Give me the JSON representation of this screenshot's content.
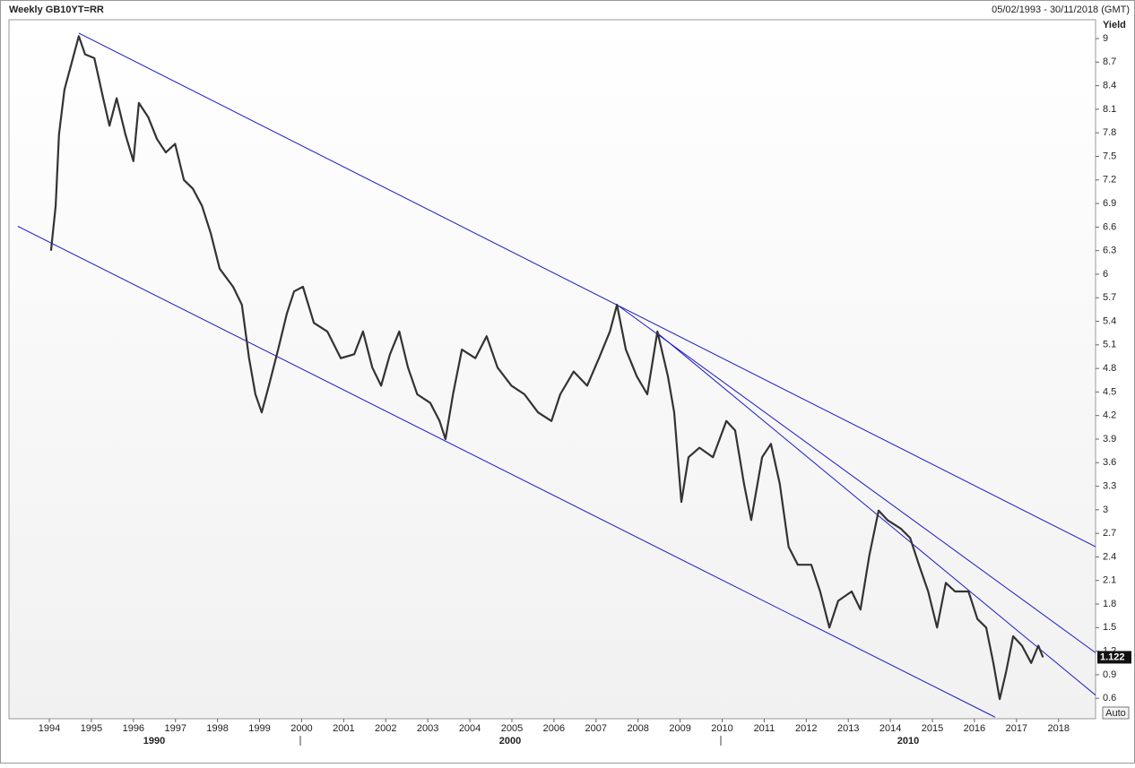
{
  "chart_data": {
    "type": "line",
    "title": "Weekly GB10YT=RR",
    "date_range": "05/02/1993 - 30/11/2018 (GMT)",
    "y_axis_label": "Yield",
    "auto_button": "Auto",
    "xlim": [
      1993.04,
      2018.88
    ],
    "xticks": [
      1994,
      1995,
      1996,
      1997,
      1998,
      1999,
      2000,
      2001,
      2002,
      2003,
      2004,
      2005,
      2006,
      2007,
      2008,
      2009,
      2010,
      2011,
      2012,
      2013,
      2014,
      2015,
      2016,
      2017,
      2018
    ],
    "major_labels": [
      "1990",
      "2000",
      "2010"
    ],
    "ylim": [
      0.34,
      9.24
    ],
    "yticks": [
      0.6,
      0.9,
      1.2,
      1.5,
      1.8,
      2.1,
      2.4,
      2.7,
      3,
      3.3,
      3.6,
      3.9,
      4.2,
      4.5,
      4.8,
      5.1,
      5.4,
      5.7,
      6,
      6.3,
      6.6,
      6.9,
      7.2,
      7.5,
      7.8,
      8.1,
      8.4,
      8.7,
      9
    ],
    "x": [
      1994.04,
      1994.15,
      1994.23,
      1994.36,
      1994.53,
      1994.7,
      1994.85,
      1995.07,
      1995.28,
      1995.43,
      1995.6,
      1995.81,
      1996.0,
      1996.13,
      1996.35,
      1996.56,
      1996.77,
      1996.99,
      1997.2,
      1997.41,
      1997.63,
      1997.84,
      1998.05,
      1998.37,
      1998.58,
      1998.75,
      1998.9,
      1999.05,
      1999.22,
      1999.44,
      1999.65,
      1999.82,
      2000.03,
      2000.29,
      2000.61,
      2000.93,
      2001.25,
      2001.46,
      2001.68,
      2001.89,
      2002.1,
      2002.32,
      2002.53,
      2002.75,
      2003.06,
      2003.28,
      2003.42,
      2003.6,
      2003.81,
      2004.13,
      2004.4,
      2004.66,
      2004.99,
      2005.3,
      2005.62,
      2005.94,
      2006.15,
      2006.47,
      2006.79,
      2007.07,
      2007.33,
      2007.5,
      2007.71,
      2007.97,
      2008.22,
      2008.46,
      2008.71,
      2008.86,
      2009.03,
      2009.2,
      2009.46,
      2009.78,
      2010.1,
      2010.31,
      2010.52,
      2010.69,
      2010.95,
      2011.16,
      2011.37,
      2011.58,
      2011.8,
      2012.12,
      2012.33,
      2012.55,
      2012.76,
      2013.08,
      2013.29,
      2013.5,
      2013.72,
      2013.93,
      2014.25,
      2014.47,
      2014.68,
      2014.9,
      2015.11,
      2015.32,
      2015.54,
      2015.86,
      2016.07,
      2016.28,
      2016.45,
      2016.6,
      2016.75,
      2016.92,
      2017.13,
      2017.35,
      2017.52,
      2017.63
    ],
    "series": [
      {
        "name": "GB10YT=RR",
        "color": "#333333",
        "values": [
          6.3,
          6.87,
          7.78,
          8.35,
          8.69,
          9.03,
          8.8,
          8.75,
          8.24,
          7.89,
          8.24,
          7.78,
          7.44,
          8.18,
          8.0,
          7.72,
          7.55,
          7.66,
          7.2,
          7.09,
          6.87,
          6.52,
          6.07,
          5.84,
          5.61,
          4.93,
          4.47,
          4.24,
          4.58,
          5.04,
          5.5,
          5.78,
          5.84,
          5.38,
          5.27,
          4.93,
          4.98,
          5.27,
          4.81,
          4.58,
          4.98,
          5.27,
          4.81,
          4.47,
          4.36,
          4.13,
          3.9,
          4.47,
          5.04,
          4.93,
          5.21,
          4.81,
          4.58,
          4.47,
          4.24,
          4.13,
          4.47,
          4.76,
          4.58,
          4.93,
          5.27,
          5.61,
          5.04,
          4.7,
          4.47,
          5.27,
          4.7,
          4.24,
          3.1,
          3.67,
          3.79,
          3.67,
          4.13,
          4.01,
          3.33,
          2.87,
          3.67,
          3.84,
          3.33,
          2.53,
          2.3,
          2.3,
          1.96,
          1.5,
          1.84,
          1.96,
          1.73,
          2.42,
          2.99,
          2.87,
          2.76,
          2.64,
          2.3,
          1.96,
          1.5,
          2.07,
          1.96,
          1.96,
          1.61,
          1.5,
          1.05,
          0.59,
          0.93,
          1.39,
          1.27,
          1.05,
          1.27,
          1.122
        ]
      }
    ],
    "trendline_color": "#1a1acc",
    "trendlines": [
      {
        "x": [
          1994.7,
          2018.88
        ],
        "y": [
          9.07,
          2.53
        ]
      },
      {
        "x": [
          1993.25,
          2016.49
        ],
        "y": [
          6.61,
          0.36
        ]
      },
      {
        "x": [
          2007.5,
          2018.88
        ],
        "y": [
          5.61,
          1.18
        ]
      },
      {
        "x": [
          2008.46,
          2018.88
        ],
        "y": [
          5.25,
          0.64
        ]
      }
    ]
  }
}
